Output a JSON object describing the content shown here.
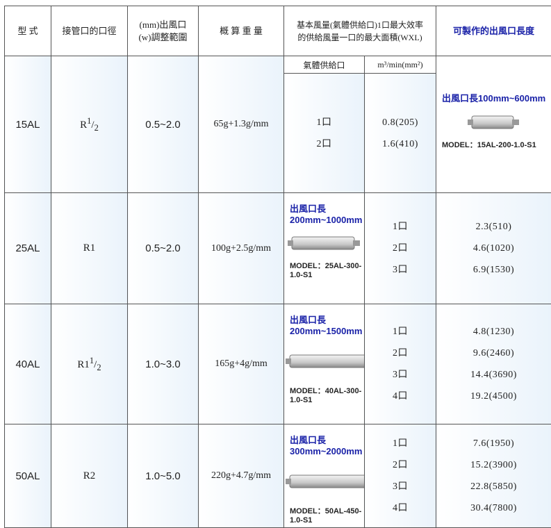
{
  "header": {
    "model": "型 式",
    "pipe": "接管口的口徑",
    "range": [
      "(mm)出風口",
      "(w)調整範圍"
    ],
    "weight": "概 算 重 量",
    "flow": [
      "基本風量(氣體供給口)1口最大效率",
      "的供給風量一口的最大面積(WXL)"
    ],
    "length": "可製作的出風口長度",
    "sub_port": "氣體供給口",
    "sub_flow": "m³/min(mm²)"
  },
  "rows": [
    {
      "model": "15AL",
      "pipe": {
        "main": "R",
        "num": "1",
        "den": "2"
      },
      "range": "0.5~2.0",
      "weight": "65g+1.3g/mm",
      "outlets": [
        {
          "port": "1口",
          "flow": "0.8(205)"
        },
        {
          "port": "2口",
          "flow": "1.6(410)"
        }
      ],
      "length": "出風口長100mm~600mm",
      "model_no": "MODEL：15AL-200-1.0-S1"
    },
    {
      "model": "25AL",
      "pipe": {
        "main": "R1"
      },
      "range": "0.5~2.0",
      "weight": "100g+2.5g/mm",
      "outlets": [
        {
          "port": "1口",
          "flow": "2.3(510)"
        },
        {
          "port": "2口",
          "flow": "4.6(1020)"
        },
        {
          "port": "3口",
          "flow": "6.9(1530)"
        }
      ],
      "length": "出風口長200mm~1000mm",
      "model_no": "MODEL：25AL-300-1.0-S1"
    },
    {
      "model": "40AL",
      "pipe": {
        "main": "R1",
        "num": "1",
        "den": "2"
      },
      "range": "1.0~3.0",
      "weight": "165g+4g/mm",
      "outlets": [
        {
          "port": "1口",
          "flow": "4.8(1230)"
        },
        {
          "port": "2口",
          "flow": "9.6(2460)"
        },
        {
          "port": "3口",
          "flow": "14.4(3690)"
        },
        {
          "port": "4口",
          "flow": "19.2(4500)"
        }
      ],
      "length": "出風口長200mm~1500mm",
      "model_no": "MODEL：40AL-300-1.0-S1"
    },
    {
      "model": "50AL",
      "pipe": {
        "main": "R2"
      },
      "range": "1.0~5.0",
      "weight": "220g+4.7g/mm",
      "outlets": [
        {
          "port": "1口",
          "flow": "7.6(1950)"
        },
        {
          "port": "2口",
          "flow": "15.2(3900)"
        },
        {
          "port": "3口",
          "flow": "22.8(5850)"
        },
        {
          "port": "4口",
          "flow": "30.4(7800)"
        }
      ],
      "length": "出風口長300mm~2000mm",
      "model_no": "MODEL：50AL-450-1.0-S1"
    }
  ]
}
